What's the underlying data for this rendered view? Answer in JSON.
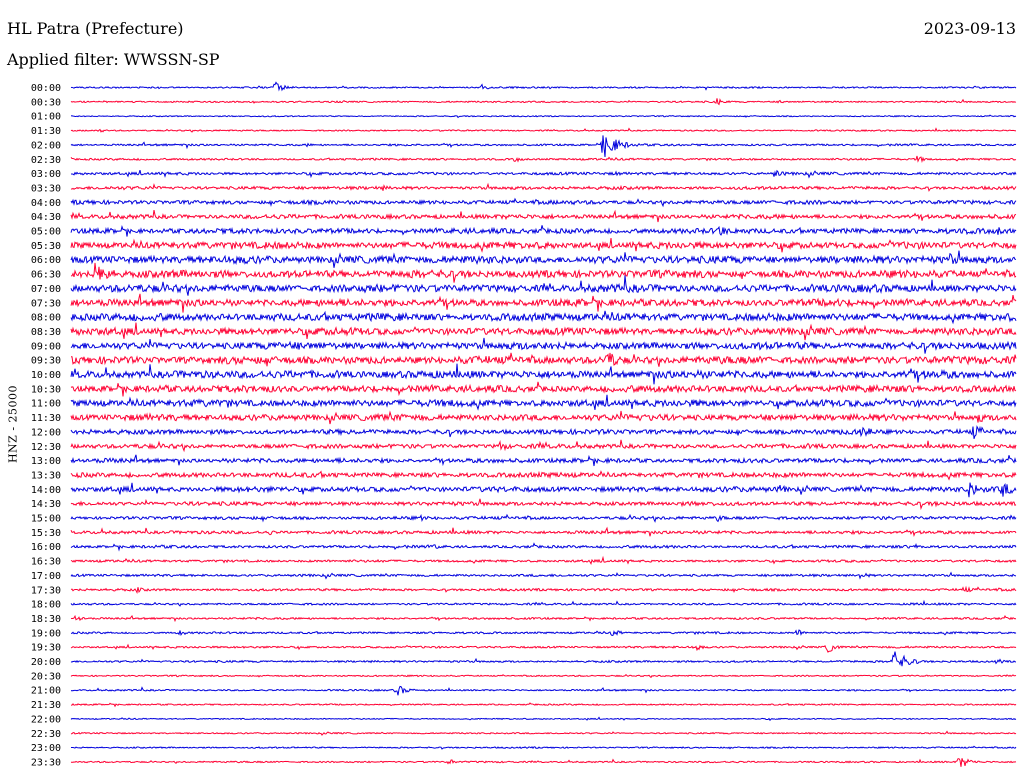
{
  "header": {
    "station": "HL Patra (Prefecture)",
    "date": "2023-09-13",
    "filter": "Applied filter: WWSSN-SP"
  },
  "colors": {
    "blue": "#0000dd",
    "red": "#ff0033"
  },
  "chart_data": {
    "type": "line",
    "ylabel": "HNZ - 25000",
    "rows": [
      {
        "time": "00:00",
        "color": "blue",
        "activity": 0.1,
        "events": [
          {
            "x": 0.216,
            "amp": 6
          },
          {
            "x": 0.435,
            "amp": 3
          }
        ]
      },
      {
        "time": "00:30",
        "color": "red",
        "activity": 0.1,
        "events": [
          {
            "x": 0.683,
            "amp": 4
          },
          {
            "x": 0.75,
            "amp": 2
          }
        ]
      },
      {
        "time": "01:00",
        "color": "blue",
        "activity": 0.05,
        "events": []
      },
      {
        "time": "01:30",
        "color": "red",
        "activity": 0.08,
        "events": [
          {
            "x": 0.03,
            "amp": 2
          }
        ]
      },
      {
        "time": "02:00",
        "color": "blue",
        "activity": 0.15,
        "events": [
          {
            "x": 0.563,
            "amp": 14
          },
          {
            "x": 0.25,
            "amp": 2
          }
        ]
      },
      {
        "time": "02:30",
        "color": "red",
        "activity": 0.15,
        "events": [
          {
            "x": 0.47,
            "amp": 3
          },
          {
            "x": 0.895,
            "amp": 4
          }
        ]
      },
      {
        "time": "03:00",
        "color": "blue",
        "activity": 0.25,
        "events": [
          {
            "x": 0.745,
            "amp": 5
          },
          {
            "x": 0.575,
            "amp": 3
          }
        ]
      },
      {
        "time": "03:30",
        "color": "red",
        "activity": 0.3,
        "events": [
          {
            "x": 0.33,
            "amp": 3
          }
        ]
      },
      {
        "time": "04:00",
        "color": "blue",
        "activity": 0.4,
        "events": [
          {
            "x": 0.02,
            "amp": 3
          }
        ]
      },
      {
        "time": "04:30",
        "color": "red",
        "activity": 0.45,
        "events": [
          {
            "x": 0.385,
            "amp": 3
          }
        ]
      },
      {
        "time": "05:00",
        "color": "blue",
        "activity": 0.55,
        "events": [
          {
            "x": 0.685,
            "amp": 7
          },
          {
            "x": 0.98,
            "amp": 5
          }
        ]
      },
      {
        "time": "05:30",
        "color": "red",
        "activity": 0.75,
        "events": []
      },
      {
        "time": "06:00",
        "color": "blue",
        "activity": 0.85,
        "events": [
          {
            "x": 0.93,
            "amp": 7
          }
        ]
      },
      {
        "time": "06:30",
        "color": "red",
        "activity": 0.85,
        "events": [
          {
            "x": 0.026,
            "amp": 14
          }
        ]
      },
      {
        "time": "07:00",
        "color": "blue",
        "activity": 0.85,
        "events": []
      },
      {
        "time": "07:30",
        "color": "red",
        "activity": 0.8,
        "events": []
      },
      {
        "time": "08:00",
        "color": "blue",
        "activity": 0.85,
        "events": []
      },
      {
        "time": "08:30",
        "color": "red",
        "activity": 0.8,
        "events": []
      },
      {
        "time": "09:00",
        "color": "blue",
        "activity": 0.8,
        "events": []
      },
      {
        "time": "09:30",
        "color": "red",
        "activity": 0.85,
        "events": [
          {
            "x": 0.567,
            "amp": 11
          }
        ]
      },
      {
        "time": "10:00",
        "color": "blue",
        "activity": 0.85,
        "events": []
      },
      {
        "time": "10:30",
        "color": "red",
        "activity": 0.75,
        "events": [
          {
            "x": 0.205,
            "amp": 5
          }
        ]
      },
      {
        "time": "11:00",
        "color": "blue",
        "activity": 0.75,
        "events": [
          {
            "x": 0.782,
            "amp": 5
          }
        ]
      },
      {
        "time": "11:30",
        "color": "red",
        "activity": 0.7,
        "events": [
          {
            "x": 0.96,
            "amp": 6
          }
        ]
      },
      {
        "time": "12:00",
        "color": "blue",
        "activity": 0.5,
        "events": [
          {
            "x": 0.835,
            "amp": 9
          },
          {
            "x": 0.955,
            "amp": 8
          }
        ]
      },
      {
        "time": "12:30",
        "color": "red",
        "activity": 0.45,
        "events": [
          {
            "x": 0.453,
            "amp": 6
          }
        ]
      },
      {
        "time": "13:00",
        "color": "blue",
        "activity": 0.45,
        "events": [
          {
            "x": 0.21,
            "amp": 3
          }
        ]
      },
      {
        "time": "13:30",
        "color": "red",
        "activity": 0.5,
        "events": [
          {
            "x": 0.06,
            "amp": 3
          }
        ]
      },
      {
        "time": "14:00",
        "color": "blue",
        "activity": 0.55,
        "events": [
          {
            "x": 0.75,
            "amp": 5
          },
          {
            "x": 0.95,
            "amp": 9
          },
          {
            "x": 0.985,
            "amp": 9
          }
        ]
      },
      {
        "time": "14:30",
        "color": "red",
        "activity": 0.4,
        "events": [
          {
            "x": 0.85,
            "amp": 3
          }
        ]
      },
      {
        "time": "15:00",
        "color": "blue",
        "activity": 0.3,
        "events": [
          {
            "x": 0.684,
            "amp": 4
          },
          {
            "x": 0.37,
            "amp": 3
          }
        ]
      },
      {
        "time": "15:30",
        "color": "red",
        "activity": 0.3,
        "events": [
          {
            "x": 0.21,
            "amp": 3
          }
        ]
      },
      {
        "time": "16:00",
        "color": "blue",
        "activity": 0.25,
        "events": [
          {
            "x": 0.895,
            "amp": 4
          },
          {
            "x": 0.385,
            "amp": 3
          }
        ]
      },
      {
        "time": "16:30",
        "color": "red",
        "activity": 0.2,
        "events": []
      },
      {
        "time": "17:00",
        "color": "blue",
        "activity": 0.2,
        "events": [
          {
            "x": 0.835,
            "amp": 4
          }
        ]
      },
      {
        "time": "17:30",
        "color": "red",
        "activity": 0.2,
        "events": [
          {
            "x": 0.945,
            "amp": 4
          },
          {
            "x": 0.07,
            "amp": 3
          }
        ]
      },
      {
        "time": "18:00",
        "color": "blue",
        "activity": 0.15,
        "events": [
          {
            "x": 0.89,
            "amp": 3
          }
        ]
      },
      {
        "time": "18:30",
        "color": "red",
        "activity": 0.15,
        "events": [
          {
            "x": 0.005,
            "amp": 4
          }
        ]
      },
      {
        "time": "19:00",
        "color": "blue",
        "activity": 0.15,
        "events": [
          {
            "x": 0.573,
            "amp": 4
          },
          {
            "x": 0.768,
            "amp": 4
          },
          {
            "x": 0.115,
            "amp": 3
          }
        ]
      },
      {
        "time": "19:30",
        "color": "red",
        "activity": 0.15,
        "events": [
          {
            "x": 0.8,
            "amp": 6
          },
          {
            "x": 0.66,
            "amp": 4
          }
        ]
      },
      {
        "time": "20:00",
        "color": "blue",
        "activity": 0.15,
        "events": [
          {
            "x": 0.87,
            "amp": 12
          },
          {
            "x": 0.98,
            "amp": 3
          }
        ]
      },
      {
        "time": "20:30",
        "color": "red",
        "activity": 0.08,
        "events": []
      },
      {
        "time": "21:00",
        "color": "blue",
        "activity": 0.1,
        "events": [
          {
            "x": 0.345,
            "amp": 6
          }
        ]
      },
      {
        "time": "21:30",
        "color": "red",
        "activity": 0.08,
        "events": []
      },
      {
        "time": "22:00",
        "color": "blue",
        "activity": 0.05,
        "events": []
      },
      {
        "time": "22:30",
        "color": "red",
        "activity": 0.08,
        "events": []
      },
      {
        "time": "23:00",
        "color": "blue",
        "activity": 0.08,
        "events": []
      },
      {
        "time": "23:30",
        "color": "red",
        "activity": 0.1,
        "events": [
          {
            "x": 0.94,
            "amp": 7
          },
          {
            "x": 0.4,
            "amp": 3
          }
        ]
      }
    ]
  }
}
